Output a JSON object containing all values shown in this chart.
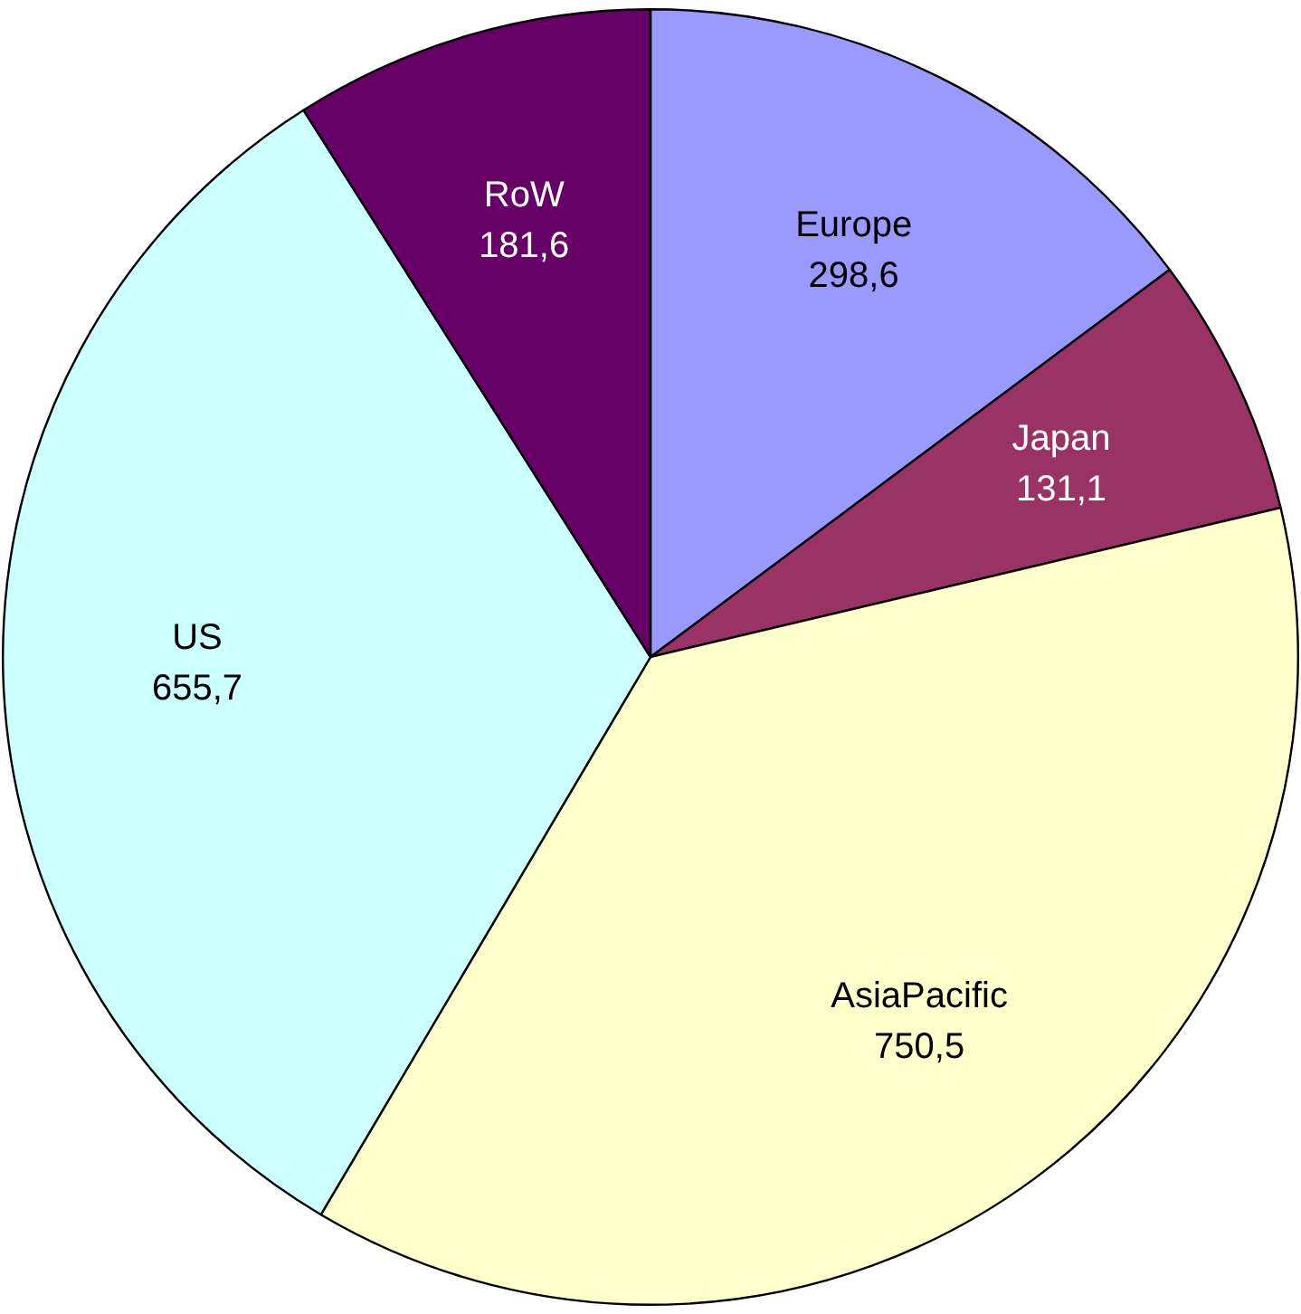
{
  "chart_data": {
    "type": "pie",
    "categories": [
      "Europe",
      "Japan",
      "AsiaPacific",
      "US",
      "RoW"
    ],
    "values": [
      298.6,
      131.1,
      750.5,
      655.7,
      181.6
    ],
    "value_labels": [
      "298,6",
      "131,1",
      "750,5",
      "655,7",
      "181,6"
    ],
    "colors": [
      "#9999ff",
      "#993366",
      "#ffffcc",
      "#ccffff",
      "#660066"
    ],
    "legend": false
  }
}
